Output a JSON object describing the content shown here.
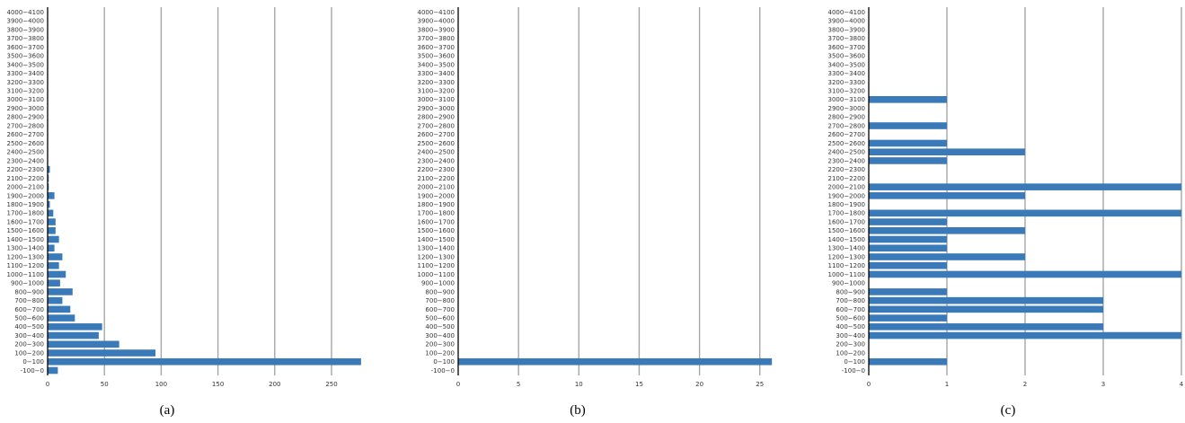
{
  "colors": {
    "bar": "#3a7ab8",
    "grid": "#a6a6a6",
    "axis": "#000000",
    "text": "#333333"
  },
  "chart_data": [
    {
      "type": "bar",
      "orientation": "horizontal",
      "caption": "(a)",
      "title": "",
      "xlabel": "",
      "ylabel": "",
      "xlim": [
        0,
        275
      ],
      "xticks": [
        0,
        50,
        100,
        150,
        200,
        250
      ],
      "grid": true,
      "categories": [
        "-100−0",
        "0−100",
        "100−200",
        "200−300",
        "300−400",
        "400−500",
        "500−600",
        "600−700",
        "700−800",
        "800−900",
        "900−1000",
        "1000−1100",
        "1100−1200",
        "1200−1300",
        "1300−1400",
        "1400−1500",
        "1500−1600",
        "1600−1700",
        "1700−1800",
        "1800−1900",
        "1900−2000",
        "2000−2100",
        "2100−2200",
        "2200−2300",
        "2300−2400",
        "2400−2500",
        "2500−2600",
        "2600−2700",
        "2700−2800",
        "2800−2900",
        "2900−3000",
        "3000−3100",
        "3100−3200",
        "3200−3300",
        "3300−3400",
        "3400−3500",
        "3500−3600",
        "3600−3700",
        "3700−3800",
        "3800−3900",
        "3900−4000",
        "4000−4100"
      ],
      "values": [
        9,
        276,
        95,
        63,
        45,
        48,
        24,
        20,
        13,
        22,
        11,
        16,
        10,
        13,
        6,
        10,
        7,
        7,
        5,
        2,
        6,
        1,
        1,
        2,
        0,
        0,
        0,
        0,
        0,
        0,
        0,
        0,
        0,
        0,
        0,
        0,
        0,
        0,
        0,
        0,
        0,
        0
      ]
    },
    {
      "type": "bar",
      "orientation": "horizontal",
      "caption": "(b)",
      "title": "",
      "xlabel": "",
      "ylabel": "",
      "xlim": [
        0,
        26
      ],
      "xticks": [
        0,
        5,
        10,
        15,
        20,
        25
      ],
      "grid": true,
      "categories": [
        "-100−0",
        "0−100",
        "100−200",
        "200−300",
        "300−400",
        "400−500",
        "500−600",
        "600−700",
        "700−800",
        "800−900",
        "900−1000",
        "1000−1100",
        "1100−1200",
        "1200−1300",
        "1300−1400",
        "1400−1500",
        "1500−1600",
        "1600−1700",
        "1700−1800",
        "1800−1900",
        "1900−2000",
        "2000−2100",
        "2100−2200",
        "2200−2300",
        "2300−2400",
        "2400−2500",
        "2500−2600",
        "2600−2700",
        "2700−2800",
        "2800−2900",
        "2900−3000",
        "3000−3100",
        "3100−3200",
        "3200−3300",
        "3300−3400",
        "3400−3500",
        "3500−3600",
        "3600−3700",
        "3700−3800",
        "3800−3900",
        "3900−4000",
        "4000−4100"
      ],
      "values": [
        0,
        26,
        0,
        0,
        0,
        0,
        0,
        0,
        0,
        0,
        0,
        0,
        0,
        0,
        0,
        0,
        0,
        0,
        0,
        0,
        0,
        0,
        0,
        0,
        0,
        0,
        0,
        0,
        0,
        0,
        0,
        0,
        0,
        0,
        0,
        0,
        0,
        0,
        0,
        0,
        0,
        0
      ]
    },
    {
      "type": "bar",
      "orientation": "horizontal",
      "caption": "(c)",
      "title": "",
      "xlabel": "",
      "ylabel": "",
      "xlim": [
        0,
        4
      ],
      "xticks": [
        0,
        1,
        2,
        3,
        4
      ],
      "grid": true,
      "categories": [
        "-100−0",
        "0−100",
        "100−200",
        "200−300",
        "300−400",
        "400−500",
        "500−600",
        "600−700",
        "700−800",
        "800−900",
        "900−1000",
        "1000−1100",
        "1100−1200",
        "1200−1300",
        "1300−1400",
        "1400−1500",
        "1500−1600",
        "1600−1700",
        "1700−1800",
        "1800−1900",
        "1900−2000",
        "2000−2100",
        "2100−2200",
        "2200−2300",
        "2300−2400",
        "2400−2500",
        "2500−2600",
        "2600−2700",
        "2700−2800",
        "2800−2900",
        "2900−3000",
        "3000−3100",
        "3100−3200",
        "3200−3300",
        "3300−3400",
        "3400−3500",
        "3500−3600",
        "3600−3700",
        "3700−3800",
        "3800−3900",
        "3900−4000",
        "4000−4100"
      ],
      "values": [
        0,
        1,
        0,
        0,
        4,
        3,
        1,
        3,
        3,
        1,
        0,
        4,
        1,
        2,
        1,
        1,
        2,
        1,
        4,
        0,
        2,
        4,
        0,
        0,
        1,
        2,
        1,
        0,
        1,
        0,
        0,
        1,
        0,
        0,
        0,
        0,
        0,
        0,
        0,
        0,
        0,
        0
      ]
    }
  ]
}
